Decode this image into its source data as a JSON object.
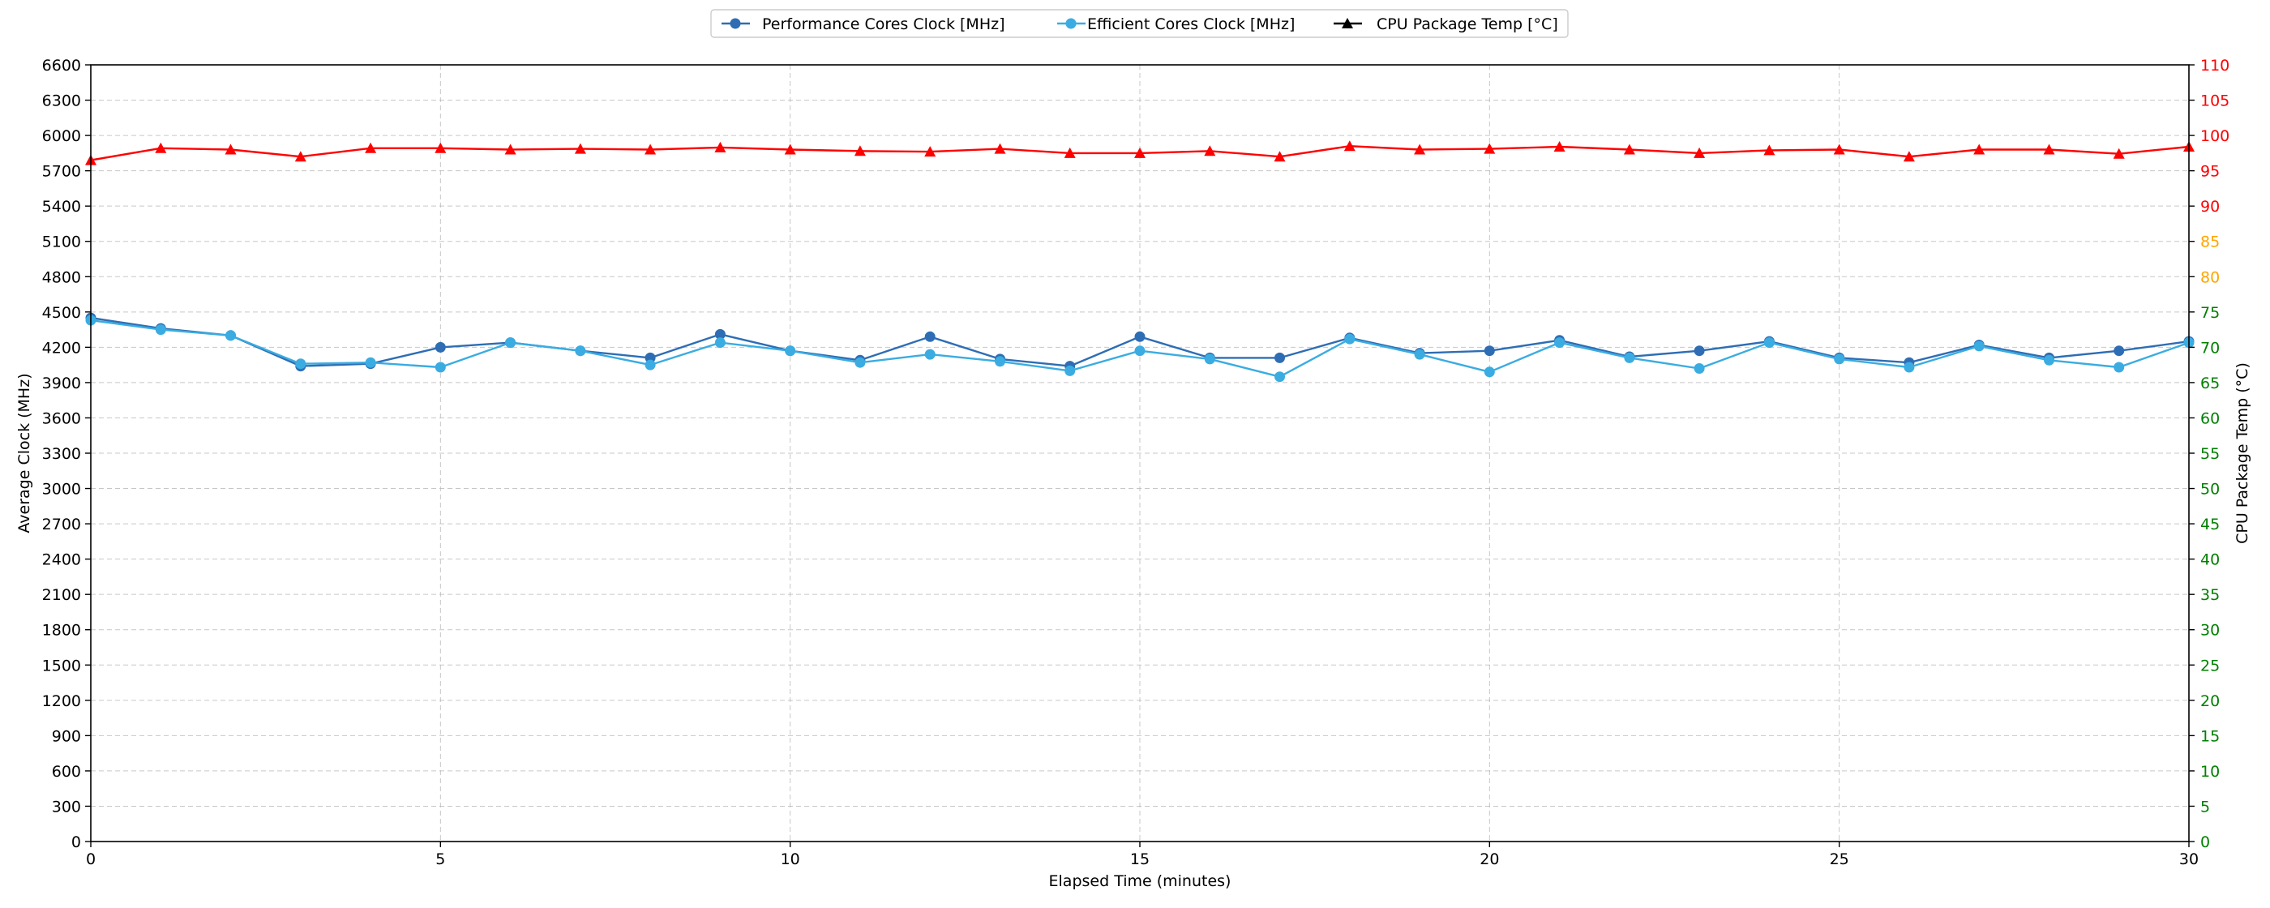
{
  "chart_data": {
    "type": "line",
    "title": "",
    "xlabel": "Elapsed Time (minutes)",
    "ylabel_left": "Average Clock (MHz)",
    "ylabel_right": "CPU Package Temp (°C)",
    "xlim": [
      0,
      30
    ],
    "ylim_left": [
      0,
      6600
    ],
    "ylim_right": [
      0,
      110
    ],
    "x_ticks": [
      0,
      5,
      10,
      15,
      20,
      25,
      30
    ],
    "y_left_ticks": [
      0,
      300,
      600,
      900,
      1200,
      1500,
      1800,
      2100,
      2400,
      2700,
      3000,
      3300,
      3600,
      3900,
      4200,
      4500,
      4800,
      5100,
      5400,
      5700,
      6000,
      6300,
      6600
    ],
    "y_right_ticks": [
      {
        "value": 0,
        "color": "#008000"
      },
      {
        "value": 5,
        "color": "#008000"
      },
      {
        "value": 10,
        "color": "#008000"
      },
      {
        "value": 15,
        "color": "#008000"
      },
      {
        "value": 20,
        "color": "#008000"
      },
      {
        "value": 25,
        "color": "#008000"
      },
      {
        "value": 30,
        "color": "#008000"
      },
      {
        "value": 35,
        "color": "#008000"
      },
      {
        "value": 40,
        "color": "#008000"
      },
      {
        "value": 45,
        "color": "#008000"
      },
      {
        "value": 50,
        "color": "#008000"
      },
      {
        "value": 55,
        "color": "#008000"
      },
      {
        "value": 60,
        "color": "#008000"
      },
      {
        "value": 65,
        "color": "#008000"
      },
      {
        "value": 70,
        "color": "#008000"
      },
      {
        "value": 75,
        "color": "#008000"
      },
      {
        "value": 80,
        "color": "#FFA500"
      },
      {
        "value": 85,
        "color": "#FFA500"
      },
      {
        "value": 90,
        "color": "#FF0000"
      },
      {
        "value": 95,
        "color": "#FF0000"
      },
      {
        "value": 100,
        "color": "#FF0000"
      },
      {
        "value": 105,
        "color": "#FF0000"
      },
      {
        "value": 110,
        "color": "#FF0000"
      }
    ],
    "grid": true,
    "legend_placement": "top-center",
    "x": [
      0,
      1,
      2,
      3,
      4,
      5,
      6,
      7,
      8,
      9,
      10,
      11,
      12,
      13,
      14,
      15,
      16,
      17,
      18,
      19,
      20,
      21,
      22,
      23,
      24,
      25,
      26,
      27,
      28,
      29,
      30
    ],
    "series": [
      {
        "name": "Performance Cores Clock [MHz]",
        "axis": "left",
        "color": "#2E6DB4",
        "marker": "circle",
        "values": [
          4450,
          4360,
          4300,
          4040,
          4060,
          4200,
          4240,
          4170,
          4110,
          4310,
          4170,
          4090,
          4290,
          4100,
          4040,
          4290,
          4110,
          4110,
          4280,
          4150,
          4170,
          4260,
          4120,
          4170,
          4250,
          4110,
          4070,
          4220,
          4110,
          4170,
          4250
        ]
      },
      {
        "name": "Efficient Cores Clock [MHz]",
        "axis": "left",
        "color": "#3AACE1",
        "marker": "circle",
        "values": [
          4430,
          4350,
          4300,
          4060,
          4070,
          4030,
          4240,
          4170,
          4050,
          4240,
          4170,
          4070,
          4140,
          4080,
          4000,
          4170,
          4100,
          3950,
          4270,
          4140,
          3990,
          4240,
          4110,
          4020,
          4240,
          4100,
          4030,
          4210,
          4090,
          4030,
          4240
        ]
      },
      {
        "name": "CPU Package Temp [°C]",
        "axis": "right",
        "color": "#FF0000",
        "legend_color": "#000000",
        "marker": "triangle",
        "values": [
          96.5,
          98.2,
          98,
          97,
          98.2,
          98.2,
          98,
          98.1,
          98,
          98.3,
          98,
          97.8,
          97.7,
          98.1,
          97.5,
          97.5,
          97.8,
          97,
          98.5,
          98,
          98.1,
          98.4,
          98,
          97.5,
          97.9,
          98,
          97,
          98,
          98,
          97.4,
          98.4
        ]
      }
    ]
  }
}
